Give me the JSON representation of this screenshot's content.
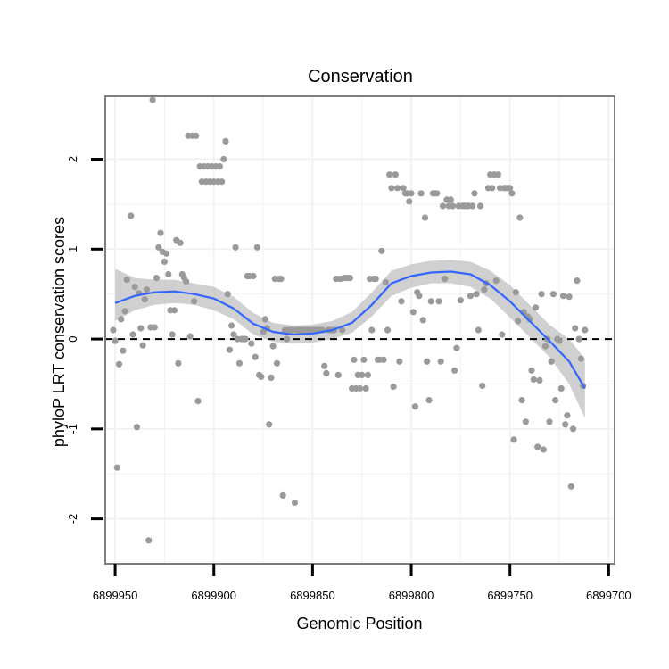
{
  "chart_data": {
    "type": "scatter",
    "title": "Conservation",
    "xlabel": "Genomic Position",
    "ylabel": "phyloP LRT conservation scores",
    "x_reversed": true,
    "xlim": [
      6899955,
      6899697
    ],
    "ylim": [
      -2.5,
      2.7
    ],
    "xticks": [
      6899950,
      6899900,
      6899850,
      6899800,
      6899750,
      6899700
    ],
    "xtick_labels": [
      "6899950",
      "6899900",
      "6899850",
      "6899800",
      "6899750",
      "6899700"
    ],
    "yticks": [
      -2,
      -1,
      0,
      1,
      2
    ],
    "ytick_labels": [
      "-2",
      "-1",
      "0",
      "1",
      "2"
    ],
    "grid": true,
    "reference_line": {
      "y": 0,
      "style": "dashed"
    },
    "colors": {
      "points": "#9a9a9a",
      "smooth": "#3366ff",
      "band": "#c8c8c8",
      "panel_border": "#7f7f7f",
      "grid": "#f2f2f2"
    },
    "points": [
      [
        6899951,
        0.1
      ],
      [
        6899950,
        -0.02
      ],
      [
        6899949,
        -1.43
      ],
      [
        6899948,
        -0.28
      ],
      [
        6899947,
        0.22
      ],
      [
        6899946,
        -0.13
      ],
      [
        6899945,
        0.31
      ],
      [
        6899944,
        0.66
      ],
      [
        6899942,
        1.37
      ],
      [
        6899941,
        0.05
      ],
      [
        6899940,
        0.58
      ],
      [
        6899939,
        -0.98
      ],
      [
        6899938,
        0.51
      ],
      [
        6899937,
        0.12
      ],
      [
        6899936,
        -0.07
      ],
      [
        6899935,
        0.44
      ],
      [
        6899934,
        0.55
      ],
      [
        6899933,
        -2.24
      ],
      [
        6899932,
        0.13
      ],
      [
        6899931,
        2.66
      ],
      [
        6899930,
        0.13
      ],
      [
        6899929,
        0.68
      ],
      [
        6899928,
        1.02
      ],
      [
        6899927,
        1.18
      ],
      [
        6899926,
        0.97
      ],
      [
        6899925,
        0.86
      ],
      [
        6899924,
        0.95
      ],
      [
        6899923,
        0.72
      ],
      [
        6899922,
        0.32
      ],
      [
        6899921,
        0.05
      ],
      [
        6899920,
        0.32
      ],
      [
        6899919,
        1.1
      ],
      [
        6899918,
        -0.27
      ],
      [
        6899917,
        1.07
      ],
      [
        6899916,
        0.72
      ],
      [
        6899915,
        0.68
      ],
      [
        6899914,
        0.64
      ],
      [
        6899913,
        2.26
      ],
      [
        6899912,
        0.03
      ],
      [
        6899911,
        2.26
      ],
      [
        6899910,
        0.42
      ],
      [
        6899909,
        2.26
      ],
      [
        6899908,
        -0.69
      ],
      [
        6899907,
        1.92
      ],
      [
        6899906,
        1.75
      ],
      [
        6899905,
        1.92
      ],
      [
        6899904,
        1.75
      ],
      [
        6899903,
        1.92
      ],
      [
        6899902,
        1.75
      ],
      [
        6899901,
        1.92
      ],
      [
        6899900,
        1.75
      ],
      [
        6899899,
        1.92
      ],
      [
        6899898,
        1.75
      ],
      [
        6899897,
        1.92
      ],
      [
        6899896,
        1.75
      ],
      [
        6899895,
        2.0
      ],
      [
        6899894,
        2.2
      ],
      [
        6899893,
        0.5
      ],
      [
        6899892,
        -0.12
      ],
      [
        6899891,
        0.15
      ],
      [
        6899890,
        0.05
      ],
      [
        6899889,
        1.02
      ],
      [
        6899888,
        0.0
      ],
      [
        6899887,
        -0.27
      ],
      [
        6899886,
        0.0
      ],
      [
        6899885,
        0.0
      ],
      [
        6899884,
        0.0
      ],
      [
        6899883,
        0.7
      ],
      [
        6899882,
        0.7
      ],
      [
        6899881,
        -0.05
      ],
      [
        6899880,
        0.7
      ],
      [
        6899879,
        -0.2
      ],
      [
        6899878,
        1.02
      ],
      [
        6899877,
        -0.4
      ],
      [
        6899876,
        -0.42
      ],
      [
        6899875,
        0.08
      ],
      [
        6899874,
        0.22
      ],
      [
        6899873,
        0.12
      ],
      [
        6899872,
        -0.95
      ],
      [
        6899871,
        -0.43
      ],
      [
        6899870,
        -0.08
      ],
      [
        6899869,
        0.67
      ],
      [
        6899868,
        -0.27
      ],
      [
        6899867,
        0.67
      ],
      [
        6899866,
        0.67
      ],
      [
        6899865,
        -1.74
      ],
      [
        6899864,
        0.1
      ],
      [
        6899863,
        0.0
      ],
      [
        6899862,
        0.1
      ],
      [
        6899861,
        0.1
      ],
      [
        6899860,
        0.1
      ],
      [
        6899859,
        -1.82
      ],
      [
        6899858,
        0.1
      ],
      [
        6899857,
        0.1
      ],
      [
        6899856,
        0.1
      ],
      [
        6899855,
        0.1
      ],
      [
        6899854,
        0.1
      ],
      [
        6899853,
        0.1
      ],
      [
        6899852,
        0.1
      ],
      [
        6899851,
        0.1
      ],
      [
        6899850,
        0.1
      ],
      [
        6899849,
        0.1
      ],
      [
        6899848,
        0.1
      ],
      [
        6899847,
        0.1
      ],
      [
        6899846,
        0.1
      ],
      [
        6899845,
        0.1
      ],
      [
        6899844,
        -0.3
      ],
      [
        6899843,
        -0.38
      ],
      [
        6899842,
        0.1
      ],
      [
        6899841,
        0.1
      ],
      [
        6899840,
        0.1
      ],
      [
        6899839,
        0.1
      ],
      [
        6899838,
        0.67
      ],
      [
        6899837,
        -0.4
      ],
      [
        6899836,
        0.67
      ],
      [
        6899835,
        0.1
      ],
      [
        6899834,
        0.68
      ],
      [
        6899833,
        0.68
      ],
      [
        6899832,
        0.68
      ],
      [
        6899831,
        0.68
      ],
      [
        6899830,
        -0.55
      ],
      [
        6899829,
        -0.23
      ],
      [
        6899828,
        -0.55
      ],
      [
        6899827,
        -0.4
      ],
      [
        6899826,
        -0.55
      ],
      [
        6899825,
        -0.4
      ],
      [
        6899824,
        -0.23
      ],
      [
        6899823,
        -0.55
      ],
      [
        6899822,
        -0.4
      ],
      [
        6899821,
        0.67
      ],
      [
        6899820,
        0.1
      ],
      [
        6899819,
        0.67
      ],
      [
        6899818,
        0.67
      ],
      [
        6899817,
        -0.23
      ],
      [
        6899816,
        -0.23
      ],
      [
        6899815,
        0.98
      ],
      [
        6899814,
        -0.23
      ],
      [
        6899813,
        0.63
      ],
      [
        6899812,
        0.1
      ],
      [
        6899811,
        1.83
      ],
      [
        6899810,
        1.68
      ],
      [
        6899809,
        -0.53
      ],
      [
        6899808,
        1.83
      ],
      [
        6899807,
        1.68
      ],
      [
        6899806,
        -0.25
      ],
      [
        6899805,
        0.42
      ],
      [
        6899804,
        1.68
      ],
      [
        6899803,
        1.62
      ],
      [
        6899802,
        1.62
      ],
      [
        6899801,
        1.53
      ],
      [
        6899800,
        1.62
      ],
      [
        6899799,
        0.3
      ],
      [
        6899798,
        -0.75
      ],
      [
        6899797,
        0.52
      ],
      [
        6899796,
        0.48
      ],
      [
        6899795,
        1.62
      ],
      [
        6899794,
        0.21
      ],
      [
        6899793,
        1.35
      ],
      [
        6899792,
        -0.25
      ],
      [
        6899791,
        -0.68
      ],
      [
        6899790,
        0.42
      ],
      [
        6899789,
        1.62
      ],
      [
        6899788,
        1.62
      ],
      [
        6899787,
        1.62
      ],
      [
        6899786,
        0.42
      ],
      [
        6899785,
        -0.25
      ],
      [
        6899784,
        1.48
      ],
      [
        6899783,
        0.67
      ],
      [
        6899782,
        1.55
      ],
      [
        6899781,
        1.48
      ],
      [
        6899780,
        1.55
      ],
      [
        6899779,
        1.48
      ],
      [
        6899778,
        -0.35
      ],
      [
        6899777,
        -0.1
      ],
      [
        6899776,
        1.48
      ],
      [
        6899775,
        0.43
      ],
      [
        6899774,
        1.48
      ],
      [
        6899773,
        1.48
      ],
      [
        6899772,
        1.48
      ],
      [
        6899771,
        1.48
      ],
      [
        6899770,
        0.48
      ],
      [
        6899769,
        1.48
      ],
      [
        6899768,
        1.62
      ],
      [
        6899767,
        0.5
      ],
      [
        6899766,
        0.1
      ],
      [
        6899765,
        1.48
      ],
      [
        6899764,
        -0.52
      ],
      [
        6899763,
        0.55
      ],
      [
        6899762,
        0.62
      ],
      [
        6899761,
        1.68
      ],
      [
        6899760,
        1.83
      ],
      [
        6899759,
        1.68
      ],
      [
        6899758,
        1.83
      ],
      [
        6899757,
        0.65
      ],
      [
        6899756,
        1.83
      ],
      [
        6899755,
        1.68
      ],
      [
        6899754,
        0.05
      ],
      [
        6899753,
        1.68
      ],
      [
        6899752,
        1.68
      ],
      [
        6899751,
        1.68
      ],
      [
        6899750,
        1.68
      ],
      [
        6899749,
        1.62
      ],
      [
        6899748,
        -1.12
      ],
      [
        6899747,
        0.52
      ],
      [
        6899746,
        0.2
      ],
      [
        6899745,
        1.35
      ],
      [
        6899744,
        -0.68
      ],
      [
        6899743,
        0.3
      ],
      [
        6899742,
        -0.92
      ],
      [
        6899741,
        0.25
      ],
      [
        6899740,
        0.22
      ],
      [
        6899739,
        -0.35
      ],
      [
        6899738,
        -0.45
      ],
      [
        6899737,
        0.35
      ],
      [
        6899736,
        -1.2
      ],
      [
        6899735,
        -0.46
      ],
      [
        6899734,
        0.5
      ],
      [
        6899733,
        -1.23
      ],
      [
        6899732,
        -0.08
      ],
      [
        6899731,
        0.0
      ],
      [
        6899730,
        -0.92
      ],
      [
        6899729,
        -0.25
      ],
      [
        6899728,
        0.5
      ],
      [
        6899727,
        -0.68
      ],
      [
        6899726,
        0.0
      ],
      [
        6899725,
        -0.02
      ],
      [
        6899724,
        -0.55
      ],
      [
        6899723,
        0.48
      ],
      [
        6899722,
        -0.95
      ],
      [
        6899721,
        -0.85
      ],
      [
        6899720,
        0.47
      ],
      [
        6899719,
        -1.64
      ],
      [
        6899718,
        -1.0
      ],
      [
        6899717,
        0.12
      ],
      [
        6899716,
        0.65
      ],
      [
        6899715,
        0.0
      ],
      [
        6899714,
        -0.22
      ],
      [
        6899713,
        -0.52
      ],
      [
        6899712,
        0.1
      ]
    ],
    "smooth": [
      [
        6899950,
        0.4,
        0.2,
        0.78
      ],
      [
        6899940,
        0.48,
        0.32,
        0.68
      ],
      [
        6899930,
        0.52,
        0.38,
        0.66
      ],
      [
        6899920,
        0.53,
        0.4,
        0.66
      ],
      [
        6899910,
        0.5,
        0.38,
        0.62
      ],
      [
        6899900,
        0.45,
        0.32,
        0.58
      ],
      [
        6899890,
        0.34,
        0.22,
        0.47
      ],
      [
        6899880,
        0.17,
        0.05,
        0.29
      ],
      [
        6899870,
        0.08,
        -0.03,
        0.18
      ],
      [
        6899860,
        0.05,
        -0.05,
        0.15
      ],
      [
        6899850,
        0.06,
        -0.04,
        0.16
      ],
      [
        6899840,
        0.1,
        0.0,
        0.2
      ],
      [
        6899830,
        0.18,
        0.07,
        0.3
      ],
      [
        6899820,
        0.38,
        0.25,
        0.52
      ],
      [
        6899810,
        0.62,
        0.48,
        0.76
      ],
      [
        6899800,
        0.7,
        0.57,
        0.83
      ],
      [
        6899790,
        0.74,
        0.62,
        0.87
      ],
      [
        6899780,
        0.75,
        0.62,
        0.88
      ],
      [
        6899770,
        0.72,
        0.58,
        0.86
      ],
      [
        6899760,
        0.6,
        0.45,
        0.76
      ],
      [
        6899750,
        0.42,
        0.24,
        0.6
      ],
      [
        6899740,
        0.2,
        0.02,
        0.38
      ],
      [
        6899730,
        -0.02,
        -0.2,
        0.16
      ],
      [
        6899720,
        -0.25,
        -0.5,
        0.0
      ],
      [
        6899712,
        -0.55,
        -0.88,
        -0.22
      ]
    ]
  }
}
